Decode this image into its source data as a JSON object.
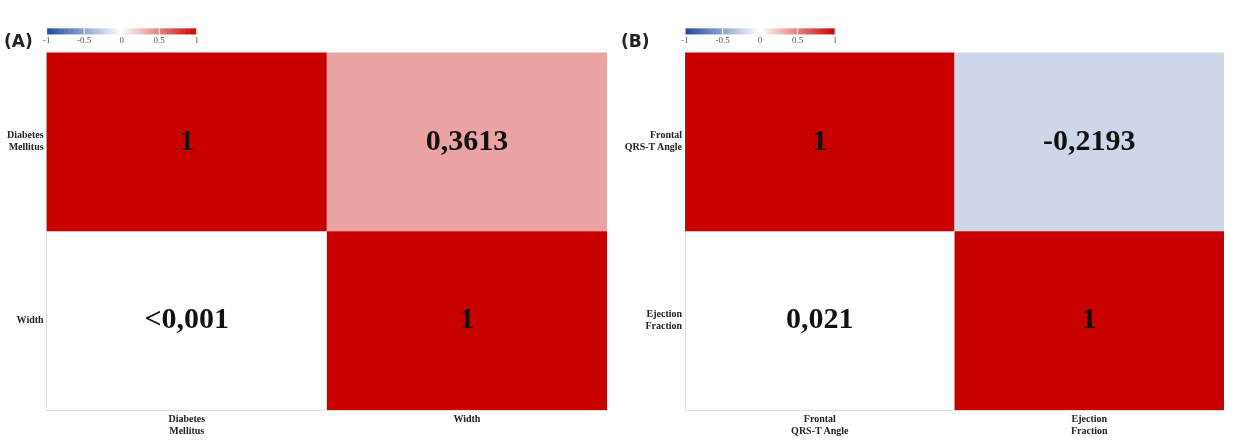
{
  "chart_data": [
    {
      "type": "heatmap",
      "title": "(A)",
      "categories": [
        "Diabetes Mellitus",
        "Width"
      ],
      "y_categories": [
        "Diabetes Mellitus",
        "Width"
      ],
      "cells": [
        [
          1,
          0.3613
        ],
        [
          null,
          1
        ]
      ],
      "cell_labels": [
        [
          "1",
          "0,3613"
        ],
        [
          "<0,001",
          "1"
        ]
      ],
      "clim": [
        -1,
        1
      ],
      "cticks": [
        -1,
        -0.5,
        0,
        0.5,
        1
      ]
    },
    {
      "type": "heatmap",
      "title": "(B)",
      "categories": [
        "Frontal QRS-T Angle",
        "Ejection Fraction"
      ],
      "y_categories": [
        "Frontal QRS-T Angle",
        "Ejection Fraction"
      ],
      "cells": [
        [
          1,
          -0.2193
        ],
        [
          null,
          1
        ]
      ],
      "cell_labels": [
        [
          "1",
          "-0,2193"
        ],
        [
          "0,021",
          "1"
        ]
      ],
      "clim": [
        -1,
        1
      ],
      "cticks": [
        -1,
        -0.5,
        0,
        0.5,
        1
      ]
    }
  ]
}
